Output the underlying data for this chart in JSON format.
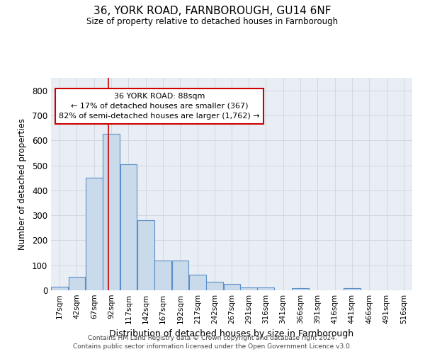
{
  "title1": "36, YORK ROAD, FARNBOROUGH, GU14 6NF",
  "title2": "Size of property relative to detached houses in Farnborough",
  "xlabel": "Distribution of detached houses by size in Farnborough",
  "ylabel": "Number of detached properties",
  "bar_labels": [
    "17sqm",
    "42sqm",
    "67sqm",
    "92sqm",
    "117sqm",
    "142sqm",
    "167sqm",
    "192sqm",
    "217sqm",
    "242sqm",
    "267sqm",
    "291sqm",
    "316sqm",
    "341sqm",
    "366sqm",
    "391sqm",
    "416sqm",
    "441sqm",
    "466sqm",
    "491sqm",
    "516sqm"
  ],
  "bar_values": [
    13,
    55,
    450,
    625,
    505,
    280,
    118,
    118,
    62,
    35,
    25,
    10,
    10,
    0,
    8,
    0,
    0,
    8,
    0,
    0,
    0
  ],
  "bin_starts": [
    4.5,
    29.5,
    54.5,
    79.5,
    104.5,
    129.5,
    154.5,
    179.5,
    204.5,
    229.5,
    254.5,
    278.5,
    303.5,
    328.5,
    353.5,
    378.5,
    403.5,
    428.5,
    453.5,
    478.5,
    503.5
  ],
  "bin_width": 25,
  "property_size": 88,
  "bar_facecolor": "#c9daea",
  "bar_edgecolor": "#5b8fc9",
  "vline_color": "#cc0000",
  "annotation_box_edgecolor": "#cc0000",
  "annotation_line1": "36 YORK ROAD: 88sqm",
  "annotation_line2": "← 17% of detached houses are smaller (367)",
  "annotation_line3": "82% of semi-detached houses are larger (1,762) →",
  "yticks": [
    0,
    100,
    200,
    300,
    400,
    500,
    600,
    700,
    800
  ],
  "ylim": [
    0,
    850
  ],
  "footnote1": "Contains HM Land Registry data © Crown copyright and database right 2024.",
  "footnote2": "Contains public sector information licensed under the Open Government Licence v3.0.",
  "bg_color": "#e8eef4",
  "fig_bg_color": "#ffffff",
  "grid_color": "#d0d8e0"
}
